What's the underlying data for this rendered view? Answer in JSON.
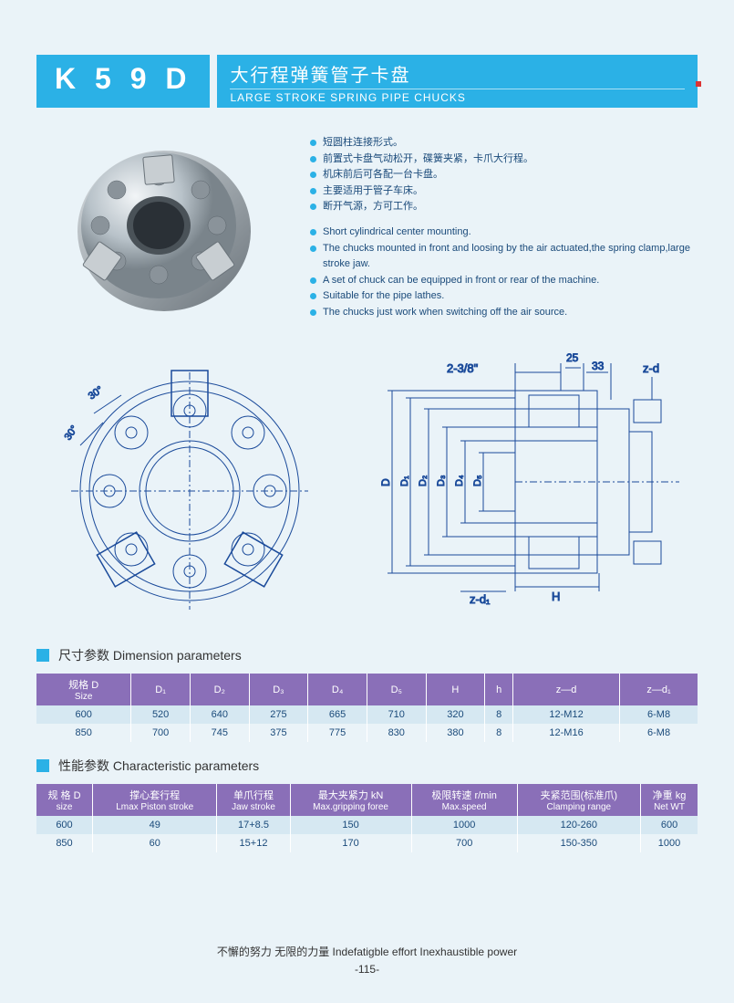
{
  "header": {
    "model": "K 5 9 D",
    "title_cn": "大行程弹簧管子卡盘",
    "title_en": "LARGE STROKE SPRING PIPE  CHUCKS"
  },
  "features_cn": [
    "短圆柱连接形式。",
    "前置式卡盘气动松开，碟簧夹紧，卡爪大行程。",
    "机床前后可各配一台卡盘。",
    "主要适用于管子车床。",
    "断开气源，方可工作。"
  ],
  "features_en": [
    "Short cylindrical center mounting.",
    "The chucks mounted in front and loosing by the air actuated,the spring clamp,large stroke jaw.",
    "A set of chuck can be equipped in front or rear of the machine.",
    "Suitable for the pipe lathes.",
    "The chucks just work when switching off the air source."
  ],
  "drawing_labels": {
    "front_angle1": "30°",
    "front_angle2": "30°",
    "side_top1": "2-3/8\"",
    "side_top2": "25",
    "side_top3": "33",
    "side_top4": "z-d",
    "side_dims": [
      "D",
      "D₁",
      "D₂",
      "D₃",
      "D₄",
      "D₅"
    ],
    "side_bottom1": "z-d₁",
    "side_bottom2": "H"
  },
  "dim_section": "尺寸参数  Dimension parameters",
  "dim_table": {
    "columns": [
      {
        "cn": "规格 D",
        "en": "Size"
      },
      {
        "cn": "D₁",
        "en": ""
      },
      {
        "cn": "D₂",
        "en": ""
      },
      {
        "cn": "D₃",
        "en": ""
      },
      {
        "cn": "D₄",
        "en": ""
      },
      {
        "cn": "D₅",
        "en": ""
      },
      {
        "cn": "H",
        "en": ""
      },
      {
        "cn": "h",
        "en": ""
      },
      {
        "cn": "z—d",
        "en": ""
      },
      {
        "cn": "z—d₁",
        "en": ""
      }
    ],
    "rows": [
      [
        "600",
        "520",
        "640",
        "275",
        "665",
        "710",
        "320",
        "8",
        "12-M12",
        "6-M8"
      ],
      [
        "850",
        "700",
        "745",
        "375",
        "775",
        "830",
        "380",
        "8",
        "12-M16",
        "6-M8"
      ]
    ]
  },
  "char_section": "性能参数  Characteristic parameters",
  "char_table": {
    "columns": [
      {
        "cn": "规 格 D",
        "en": "size"
      },
      {
        "cn": "撑心套行程",
        "en": "Lmax Piston stroke"
      },
      {
        "cn": "单爪行程",
        "en": "Jaw stroke"
      },
      {
        "cn": "最大夹紧力 kN",
        "en": "Max.gripping foree"
      },
      {
        "cn": "极限转速 r/min",
        "en": "Max.speed"
      },
      {
        "cn": "夹紧范围(标准爪)",
        "en": "Clamping range"
      },
      {
        "cn": "净重 kg",
        "en": "Net WT"
      }
    ],
    "rows": [
      [
        "600",
        "49",
        "17+8.5",
        "150",
        "1000",
        "120-260",
        "600"
      ],
      [
        "850",
        "60",
        "15+12",
        "170",
        "700",
        "150-350",
        "1000"
      ]
    ]
  },
  "footer": {
    "slogan": "不懈的努力  无限的力量   Indefatigble effort  Inexhaustible power",
    "page": "-115-"
  },
  "colors": {
    "page_bg": "#eaf3f8",
    "accent": "#2bb1e6",
    "purple": "#8a6fb8",
    "row_odd": "#d6e8f2",
    "text_blue": "#1a4a7a",
    "line": "#1a4a9a"
  }
}
